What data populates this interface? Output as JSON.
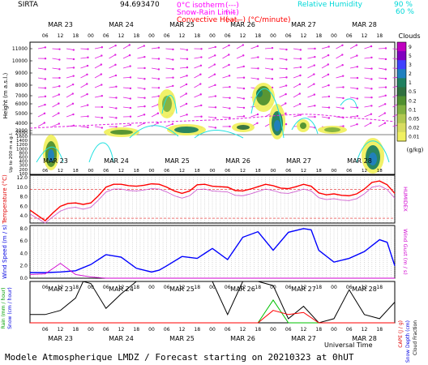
{
  "header": {
    "station": "SIRTA",
    "coords": "94.693470",
    "legend": [
      {
        "label": "0°C isotherm",
        "sym": "(---)",
        "color": "#ff00ff"
      },
      {
        "label": "Snow-Rain Limit",
        "sym": "(---)",
        "color": "#ff00ff"
      },
      {
        "label": "Convective Heat.",
        "sym": "(——) (°C/minute)",
        "color": "#ff0000"
      }
    ],
    "rh_label": "Relative Humidity",
    "rh_levels": [
      "90 %",
      "60 %"
    ],
    "rh_color": "#00e0e0"
  },
  "axes": {
    "day_labels": [
      "MAR 23",
      "MAR 24",
      "MAR 25",
      "MAR 26",
      "MAR 27",
      "MAR 28"
    ],
    "hour_labels": [
      "06",
      "12",
      "18",
      "00",
      "06",
      "12",
      "18",
      "00",
      "06",
      "12",
      "18",
      "00",
      "06",
      "12",
      "18",
      "00",
      "06",
      "12",
      "18",
      "00",
      "06",
      "12",
      "18"
    ],
    "x_title": "Universal Time",
    "footer": "Modele Atmospherique LMDZ / Forecast starting on 20210323 at 0hUT"
  },
  "clouds_panel": {
    "ylabel": "Height (m a.s.l.)",
    "ylabel_low": "Up to 200 m a.g.l.",
    "yticks": [
      "11000",
      "10000",
      "9000",
      "8000",
      "7000",
      "6000",
      "5000",
      "4000",
      "3000",
      "2000",
      "1600",
      "1400",
      "1200",
      "1000",
      "800",
      "600",
      "400",
      "300",
      "200",
      "100"
    ],
    "scale_title": "Clouds",
    "scale_unit": "(g/kg)",
    "scale_values": [
      "9",
      "5",
      "3",
      "2",
      "1",
      "0.5",
      "0.2",
      "0.1",
      "0.05",
      "0.02",
      "0.01"
    ],
    "scale_colors": [
      "#c000c0",
      "#8000c0",
      "#4040ff",
      "#2080c0",
      "#208060",
      "#307040",
      "#509030",
      "#80b040",
      "#b0c850",
      "#d8dc60",
      "#f0f060"
    ]
  },
  "chart_data": [
    {
      "type": "line",
      "title": "",
      "ylabel": "Temperature (°C)",
      "ylabel_right": "HUMIDEX",
      "yticks": [
        "12.0",
        "10.0",
        "8.0",
        "6.0",
        "4.0"
      ],
      "ylim": [
        2.5,
        12.5
      ],
      "x_hours": [
        0,
        6,
        9,
        12,
        15,
        18,
        21,
        24,
        27,
        30,
        33,
        36,
        39,
        42,
        45,
        48,
        51,
        54,
        57,
        60,
        63,
        66,
        69,
        72,
        75,
        78,
        81,
        84,
        87,
        90,
        93,
        96,
        99,
        102,
        105,
        108,
        111,
        114,
        117,
        120,
        123,
        126,
        129,
        132,
        135,
        138,
        141,
        144
      ],
      "series": [
        {
          "values": [
            5.2,
            3.0,
            4.6,
            6.0,
            6.6,
            6.7,
            6.4,
            6.7,
            8.2,
            10.0,
            10.6,
            10.6,
            10.3,
            10.2,
            10.4,
            10.7,
            10.6,
            10.0,
            9.2,
            8.7,
            9.2,
            10.5,
            10.6,
            10.2,
            10.1,
            10.0,
            9.3,
            9.2,
            9.6,
            10.1,
            10.6,
            10.3,
            9.8,
            9.7,
            10.1,
            10.6,
            10.2,
            8.8,
            8.4,
            8.6,
            8.3,
            8.2,
            8.6,
            9.6,
            11.0,
            11.3,
            10.5,
            8.7
          ],
          "color": "#ff0000"
        },
        {
          "values": [
            4.4,
            2.5,
            3.8,
            5.0,
            5.6,
            5.8,
            5.4,
            5.8,
            7.3,
            9.0,
            9.6,
            9.6,
            9.3,
            9.2,
            9.4,
            9.7,
            9.6,
            9.0,
            8.2,
            7.7,
            8.2,
            9.5,
            9.6,
            9.2,
            9.1,
            9.0,
            8.3,
            8.2,
            8.6,
            9.1,
            9.6,
            9.3,
            8.8,
            8.7,
            9.1,
            9.6,
            9.2,
            7.8,
            7.4,
            7.6,
            7.3,
            7.2,
            7.6,
            8.6,
            10.0,
            10.3,
            9.5,
            7.7
          ],
          "color": "#d060d0"
        }
      ]
    },
    {
      "type": "line",
      "title": "",
      "ylabel": "Wind Speed (m / s)",
      "ylabel_right": "Wind Gust (m / s)",
      "yticks": [
        "8.0",
        "6.0",
        "4.0",
        "2.0",
        "0.0"
      ],
      "ylim": [
        0,
        8.5
      ],
      "x_hours": [
        0,
        6,
        12,
        18,
        24,
        30,
        36,
        42,
        48,
        51,
        54,
        60,
        66,
        72,
        78,
        84,
        90,
        96,
        102,
        108,
        111,
        114,
        120,
        126,
        132,
        138,
        141,
        144
      ],
      "series": [
        {
          "values": [
            0.9,
            0.9,
            1.0,
            1.2,
            2.2,
            3.8,
            3.4,
            1.6,
            1.0,
            1.3,
            2.0,
            3.5,
            3.2,
            4.8,
            3.0,
            6.6,
            7.5,
            4.5,
            7.4,
            8.0,
            7.8,
            4.5,
            2.6,
            3.2,
            4.3,
            6.2,
            5.8,
            2.0
          ],
          "color": "#0000ff"
        },
        {
          "values": [
            0.6,
            0.7,
            2.4,
            0.6,
            0.2,
            0.0,
            0.0,
            0.0,
            0.0,
            0.0,
            0.0,
            0.0,
            0.0,
            0.0,
            0.0,
            0.0,
            0.0,
            0.0,
            0.0,
            0.0,
            0.0,
            0.0,
            0.0,
            0.0,
            0.0,
            0.0,
            0.0,
            0.0
          ],
          "color": "#d000d0"
        }
      ]
    },
    {
      "type": "line",
      "title": "",
      "ylabel": "Rain (mm / hour)",
      "ylabel2": "Snow (cm / hour)",
      "ylabel_right": "CAPE (J / g)",
      "ylabel_right2": "Snow Depth (cm)",
      "ylabel_right3": "Cloud Fraction",
      "x_hours": [
        0,
        6,
        12,
        18,
        21,
        24,
        30,
        36,
        42,
        48,
        54,
        60,
        66,
        72,
        78,
        84,
        90,
        96,
        102,
        108,
        114,
        120,
        126,
        132,
        138,
        144
      ],
      "series": [
        {
          "name": "",
          "values": [
            0.2,
            0.2,
            0.3,
            0.6,
            1.0,
            0.95,
            0.35,
            0.7,
            1.0,
            1.0,
            1.0,
            1.0,
            1.0,
            1.0,
            0.2,
            1.0,
            1.0,
            0.9,
            0.1,
            0.4,
            0.0,
            0.1,
            0.8,
            0.2,
            0.1,
            0.5
          ],
          "color": "#000000"
        },
        {
          "name": "",
          "values": [
            0.0,
            0.0,
            0.0,
            0.0,
            0.0,
            0.0,
            0.0,
            0.0,
            0.0,
            0.0,
            0.0,
            0.0,
            0.0,
            0.0,
            0.0,
            0.0,
            0.0,
            0.55,
            0.0,
            0.0,
            0.0,
            0.0,
            0.0,
            0.0,
            0.0,
            0.0
          ],
          "color": "#00c000"
        },
        {
          "name": "",
          "values": [
            0.0,
            0.0,
            0.0,
            0.0,
            0.0,
            0.0,
            0.0,
            0.0,
            0.0,
            0.0,
            0.0,
            0.0,
            0.0,
            0.0,
            0.0,
            0.0,
            0.0,
            0.3,
            0.2,
            0.25,
            0.0,
            0.0,
            0.0,
            0.0,
            0.0,
            0.0
          ],
          "color": "#ff0000"
        }
      ]
    }
  ]
}
